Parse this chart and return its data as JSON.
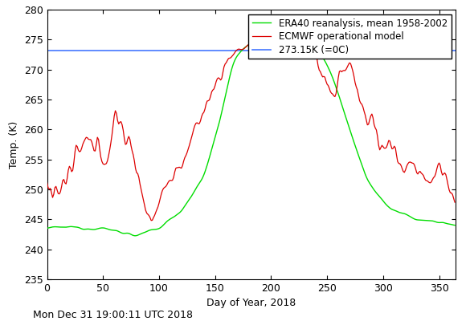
{
  "title": "",
  "xlabel": "Day of Year, 2018",
  "ylabel": "Temp. (K)",
  "xlim": [
    0,
    365
  ],
  "ylim": [
    235,
    280
  ],
  "yticks": [
    235,
    240,
    245,
    250,
    255,
    260,
    265,
    270,
    275,
    280
  ],
  "xticks": [
    0,
    50,
    100,
    150,
    200,
    250,
    300,
    350
  ],
  "freeze_line": 273.15,
  "freeze_label": "273.15K (=0C)",
  "freeze_color": "#4477ff",
  "era40_label": "ERA40 reanalysis, mean 1958-2002",
  "era40_color": "#00dd00",
  "ecmwf_label": "ECMWF operational model",
  "ecmwf_color": "#dd0000",
  "timestamp": "Mon Dec 31 19:00:11 UTC 2018",
  "background_color": "#ffffff",
  "legend_fontsize": 8.5,
  "axis_fontsize": 9,
  "tick_fontsize": 9,
  "timestamp_fontsize": 9
}
